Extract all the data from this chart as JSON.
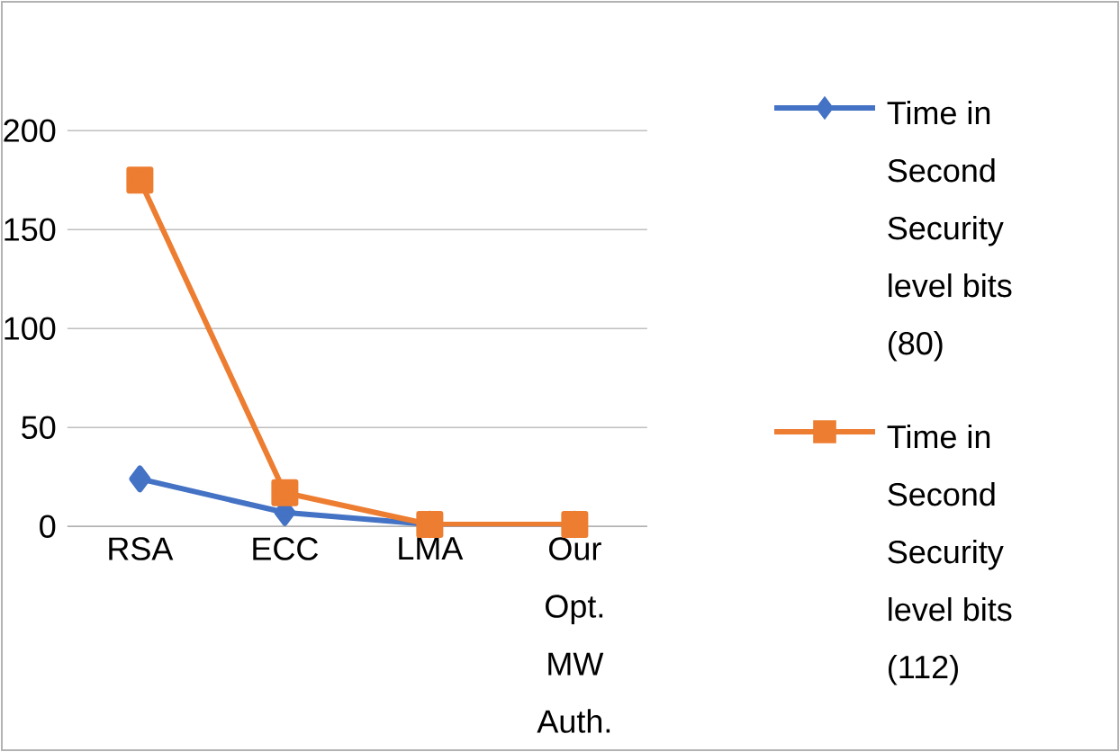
{
  "chart_data": {
    "type": "line",
    "categories": [
      "RSA",
      "ECC",
      "LMA",
      "Our Opt. MW Auth."
    ],
    "series": [
      {
        "name": "Time in Second Security level bits (80)",
        "color": "#4472c4",
        "marker": "diamond",
        "values": [
          24,
          7,
          1,
          1
        ]
      },
      {
        "name": "Time in Second Security level bits (112)",
        "color": "#ed7d31",
        "marker": "square",
        "values": [
          175,
          17,
          1,
          1
        ]
      }
    ],
    "ylim": [
      0,
      200
    ],
    "yticks": [
      0,
      50,
      100,
      150,
      200
    ],
    "grid": "y",
    "legend": "right"
  }
}
